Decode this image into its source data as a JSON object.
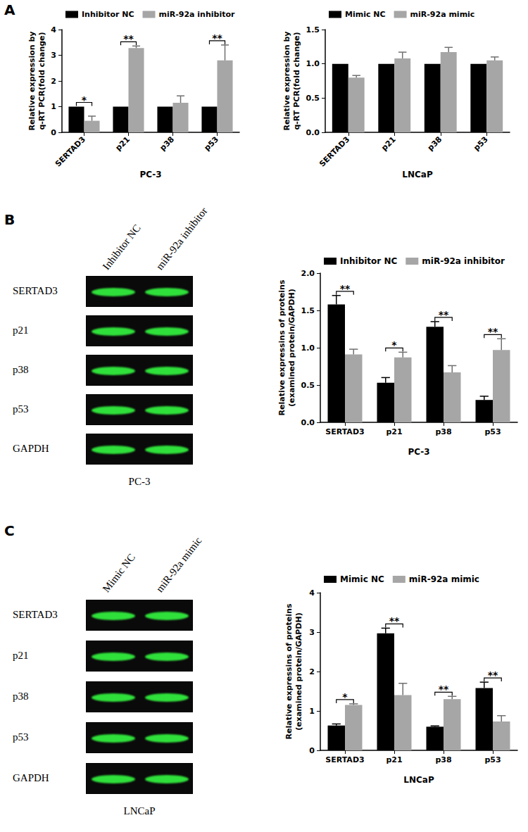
{
  "panel_labels": [
    "A",
    "B",
    "C"
  ],
  "chart_data": [
    {
      "type": "bar",
      "ylabel": "Relative expression by\nq-RT PCR(fold change)",
      "xlabel": "PC-3",
      "categories": [
        "SERTAD3",
        "p21",
        "p38",
        "p53"
      ],
      "series": [
        {
          "name": "Inhibitor NC",
          "color": "#000000",
          "values": [
            1,
            1,
            1,
            1
          ],
          "errors": [
            0,
            0,
            0,
            0
          ]
        },
        {
          "name": "miR-92a inhibitor",
          "color": "#a6a6a6",
          "values": [
            0.45,
            3.28,
            1.15,
            2.8
          ],
          "errors": [
            0.18,
            0.08,
            0.27,
            0.6
          ]
        }
      ],
      "ylim": [
        0,
        4
      ],
      "yticks": [
        0,
        1,
        2,
        3,
        4
      ],
      "legend": "top",
      "significance": [
        {
          "category": "SERTAD3",
          "label": "*"
        },
        {
          "category": "p21",
          "label": "**"
        },
        {
          "category": "p53",
          "label": "**"
        }
      ]
    },
    {
      "type": "bar",
      "ylabel": "Relative expression by\nq-RT PCR(fold change)",
      "xlabel": "LNCaP",
      "categories": [
        "SERTAD3",
        "p21",
        "p38",
        "p53"
      ],
      "series": [
        {
          "name": "Mimic NC",
          "color": "#000000",
          "values": [
            1,
            1,
            1,
            1
          ],
          "errors": [
            0,
            0,
            0,
            0
          ]
        },
        {
          "name": "miR-92a mimic",
          "color": "#a6a6a6",
          "values": [
            0.8,
            1.08,
            1.17,
            1.05
          ],
          "errors": [
            0.03,
            0.09,
            0.07,
            0.05
          ]
        }
      ],
      "ylim": [
        0,
        1.5
      ],
      "yticks": [
        {
          "value": 0,
          "label": "0.0"
        },
        0.5,
        {
          "value": 1,
          "label": "1.0"
        },
        1.5
      ],
      "legend": "top",
      "significance": []
    },
    {
      "type": "bar",
      "ylabel": "Relative expressins of proteins\n(examined protein/GAPDH)",
      "xlabel": "PC-3",
      "categories": [
        "SERTAD3",
        "p21",
        "p38",
        "p53"
      ],
      "series": [
        {
          "name": "Inhibitor NC",
          "color": "#000000",
          "values": [
            1.58,
            0.53,
            1.28,
            0.3
          ],
          "errors": [
            0.12,
            0.07,
            0.07,
            0.05
          ]
        },
        {
          "name": "miR-92a inhibitor",
          "color": "#a6a6a6",
          "values": [
            0.91,
            0.87,
            0.67,
            0.97
          ],
          "errors": [
            0.07,
            0.07,
            0.09,
            0.15
          ]
        }
      ],
      "ylim": [
        0,
        2
      ],
      "yticks": [
        {
          "value": 0,
          "label": "0.0"
        },
        0.5,
        {
          "value": 1,
          "label": "1.0"
        },
        1.5,
        {
          "value": 2,
          "label": "2.0"
        }
      ],
      "legend": "top",
      "significance": [
        {
          "category": "SERTAD3",
          "label": "**"
        },
        {
          "category": "p21",
          "label": "*"
        },
        {
          "category": "p38",
          "label": "**"
        },
        {
          "category": "p53",
          "label": "**"
        }
      ]
    },
    {
      "type": "bar",
      "ylabel": "Relative expressins of proteins\n(examined protein/GAPDH)",
      "xlabel": "LNCaP",
      "categories": [
        "SERTAD3",
        "p21",
        "p38",
        "p53"
      ],
      "series": [
        {
          "name": "Mimic NC",
          "color": "#000000",
          "values": [
            0.63,
            2.97,
            0.6,
            1.58
          ],
          "errors": [
            0.04,
            0.13,
            0.02,
            0.15
          ]
        },
        {
          "name": "miR-92a mimic",
          "color": "#a6a6a6",
          "values": [
            1.15,
            1.4,
            1.3,
            0.73
          ],
          "errors": [
            0.03,
            0.3,
            0.07,
            0.15
          ]
        }
      ],
      "ylim": [
        0,
        4
      ],
      "yticks": [
        0,
        1,
        2,
        3,
        4
      ],
      "legend": "top",
      "significance": [
        {
          "category": "SERTAD3",
          "label": "*"
        },
        {
          "category": "p21",
          "label": "**"
        },
        {
          "category": "p38",
          "label": "**"
        },
        {
          "category": "p53",
          "label": "**"
        }
      ]
    }
  ],
  "blots": [
    {
      "lanes": [
        "Inhibitor NC",
        "miR-92a inhibitor"
      ],
      "rows": [
        "SERTAD3",
        "p21",
        "p38",
        "p53",
        "GAPDH"
      ],
      "caption": "PC-3"
    },
    {
      "lanes": [
        "Mimic NC",
        "miR-92a mimic"
      ],
      "rows": [
        "SERTAD3",
        "p21",
        "p38",
        "p53",
        "GAPDH"
      ],
      "caption": "LNCaP"
    }
  ]
}
